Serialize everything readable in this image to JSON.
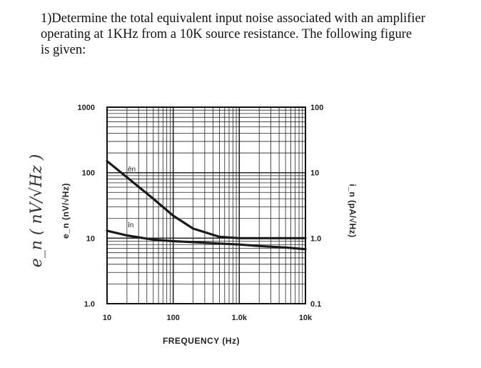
{
  "question": {
    "line1": "1)Determine the total equivalent input noise associated with an amplifier",
    "line2": "operating at 1KHz from a 10K source resistance.  The following figure",
    "line3": "is given:"
  },
  "chart_data": {
    "type": "line",
    "x_scale": "log",
    "y_scale": "log",
    "xlim": [
      10,
      10000
    ],
    "ylim_left": [
      1.0,
      1000
    ],
    "ylim_right": [
      0.1,
      100
    ],
    "xlabel": "FREQUENCY (Hz)",
    "ylabel_left": "e_n (nV/√Hz)",
    "ylabel_right": "i_n (pA/√Hz)",
    "handwritten_ylabel": "e_n ( nV/√Hz )",
    "grid": true,
    "x_tick_labels": [
      "10",
      "100",
      "1.0k",
      "10k"
    ],
    "y_left_tick_labels": [
      "1000",
      "100",
      "10",
      "1.0"
    ],
    "y_right_tick_labels": [
      "100",
      "10",
      "1.0",
      "0.1"
    ],
    "series": [
      {
        "name": "ēn",
        "axis": "left",
        "x": [
          10,
          20,
          50,
          100,
          200,
          500,
          1000,
          2000,
          5000,
          10000
        ],
        "y": [
          150,
          85,
          40,
          22,
          14,
          10.5,
          10,
          10,
          10,
          10
        ]
      },
      {
        "name": "īn",
        "axis": "right",
        "x": [
          10,
          20,
          50,
          100,
          200,
          500,
          1000,
          2000,
          5000,
          10000
        ],
        "y": [
          1.3,
          1.1,
          0.95,
          0.9,
          0.87,
          0.83,
          0.8,
          0.76,
          0.72,
          0.68
        ]
      }
    ]
  }
}
